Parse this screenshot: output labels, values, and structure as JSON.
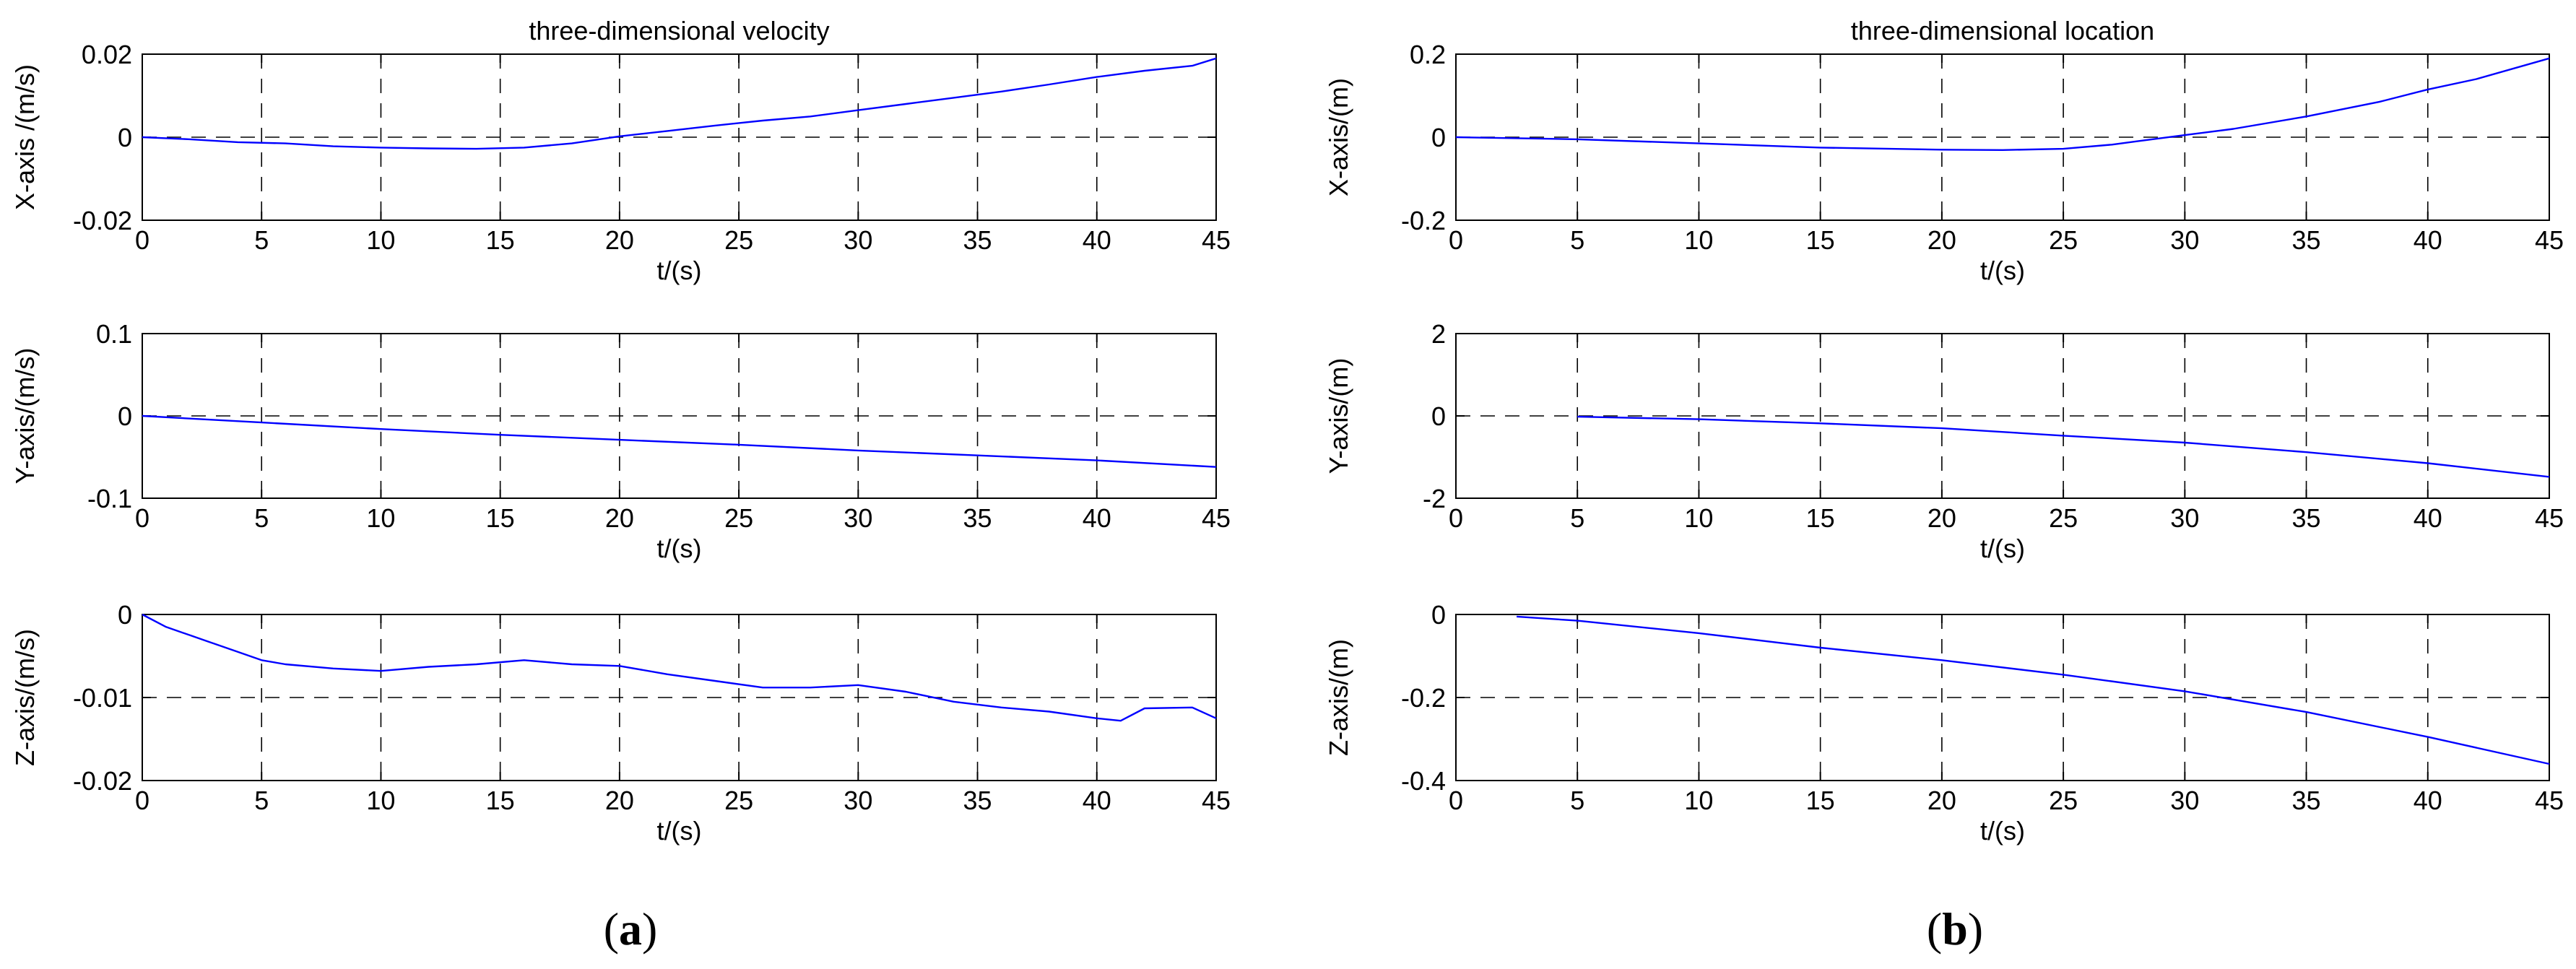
{
  "panels": [
    {
      "letter": "a",
      "open": "(",
      "close": ")"
    },
    {
      "letter": "b",
      "open": "(",
      "close": ")"
    }
  ],
  "chart_data": [
    {
      "type": "line",
      "panel": "a",
      "title": "three-dimensional velocity",
      "xlabel": "t/(s)",
      "ylabel": "X-axis /(m/s)",
      "xlim": [
        0,
        45
      ],
      "ylim": [
        -0.02,
        0.02
      ],
      "xticks": [
        0,
        5,
        10,
        15,
        20,
        25,
        30,
        35,
        40,
        45
      ],
      "yticks": [
        -0.02,
        0,
        0.02
      ],
      "ytick_labels": [
        "-0.02",
        "0",
        "0.02"
      ],
      "grid": true,
      "line_color": "#0000ff",
      "x": [
        0,
        2,
        4,
        6,
        8,
        10,
        12,
        14,
        16,
        18,
        20,
        22,
        24,
        26,
        28,
        30,
        32,
        34,
        36,
        38,
        40,
        42,
        44,
        45
      ],
      "y": [
        0,
        -0.0005,
        -0.0012,
        -0.0015,
        -0.0022,
        -0.0025,
        -0.0027,
        -0.0028,
        -0.0025,
        -0.0015,
        0.0002,
        0.0015,
        0.0028,
        0.004,
        0.005,
        0.0065,
        0.008,
        0.0095,
        0.011,
        0.0127,
        0.0145,
        0.016,
        0.0172,
        0.019
      ]
    },
    {
      "type": "line",
      "panel": "a",
      "title": "",
      "xlabel": "t/(s)",
      "ylabel": "Y-axis/(m/s)",
      "xlim": [
        0,
        45
      ],
      "ylim": [
        -0.1,
        0.1
      ],
      "xticks": [
        0,
        5,
        10,
        15,
        20,
        25,
        30,
        35,
        40,
        45
      ],
      "yticks": [
        -0.1,
        0,
        0.1
      ],
      "ytick_labels": [
        "-0.1",
        "0",
        "0.1"
      ],
      "grid": true,
      "line_color": "#0000ff",
      "x": [
        0,
        5,
        10,
        15,
        20,
        25,
        30,
        35,
        40,
        45
      ],
      "y": [
        0,
        -0.008,
        -0.016,
        -0.023,
        -0.029,
        -0.035,
        -0.042,
        -0.048,
        -0.054,
        -0.062
      ]
    },
    {
      "type": "line",
      "panel": "a",
      "title": "",
      "xlabel": "t/(s)",
      "ylabel": "Z-axis/(m/s)",
      "xlim": [
        0,
        45
      ],
      "ylim": [
        -0.02,
        0
      ],
      "xticks": [
        0,
        5,
        10,
        15,
        20,
        25,
        30,
        35,
        40,
        45
      ],
      "yticks": [
        -0.02,
        -0.01,
        0
      ],
      "ytick_labels": [
        "-0.02",
        "-0.01",
        "0"
      ],
      "grid": true,
      "line_color": "#0000ff",
      "x": [
        0,
        1,
        2,
        3,
        4,
        5,
        6,
        8,
        10,
        12,
        14,
        16,
        18,
        20,
        22,
        24,
        26,
        28,
        30,
        32,
        34,
        36,
        38,
        40,
        41,
        42,
        44,
        45
      ],
      "y": [
        0,
        -0.0015,
        -0.0025,
        -0.0035,
        -0.0045,
        -0.0055,
        -0.006,
        -0.0065,
        -0.0068,
        -0.0063,
        -0.006,
        -0.0055,
        -0.006,
        -0.0062,
        -0.0072,
        -0.008,
        -0.0088,
        -0.0088,
        -0.0085,
        -0.0093,
        -0.0105,
        -0.0112,
        -0.0117,
        -0.0125,
        -0.0128,
        -0.0113,
        -0.0112,
        -0.0125
      ]
    },
    {
      "type": "line",
      "panel": "b",
      "title": "three-dimensional location",
      "xlabel": "t/(s)",
      "ylabel": "X-axis/(m)",
      "xlim": [
        0,
        45
      ],
      "ylim": [
        -0.2,
        0.2
      ],
      "xticks": [
        0,
        5,
        10,
        15,
        20,
        25,
        30,
        35,
        40,
        45
      ],
      "yticks": [
        -0.2,
        0,
        0.2
      ],
      "ytick_labels": [
        "-0.2",
        "0",
        "0.2"
      ],
      "grid": true,
      "line_color": "#0000ff",
      "x": [
        0,
        5,
        10,
        15,
        20,
        22.5,
        25,
        27,
        28,
        30,
        32,
        35,
        38,
        40,
        42,
        45
      ],
      "y": [
        0,
        -0.005,
        -0.015,
        -0.025,
        -0.03,
        -0.031,
        -0.028,
        -0.018,
        -0.01,
        0.005,
        0.02,
        0.05,
        0.085,
        0.115,
        0.14,
        0.19
      ]
    },
    {
      "type": "line",
      "panel": "b",
      "title": "",
      "xlabel": "t/(s)",
      "ylabel": "Y-axis/(m)",
      "xlim": [
        0,
        45
      ],
      "ylim": [
        -2,
        2
      ],
      "xticks": [
        0,
        5,
        10,
        15,
        20,
        25,
        30,
        35,
        40,
        45
      ],
      "yticks": [
        -2,
        0,
        2
      ],
      "ytick_labels": [
        "-2",
        "0",
        "2"
      ],
      "grid": true,
      "line_color": "#0000ff",
      "x": [
        5,
        10,
        15,
        20,
        25,
        30,
        35,
        40,
        45
      ],
      "y": [
        -0.02,
        -0.08,
        -0.18,
        -0.3,
        -0.48,
        -0.65,
        -0.88,
        -1.15,
        -1.48
      ]
    },
    {
      "type": "line",
      "panel": "b",
      "title": "",
      "xlabel": "t/(s)",
      "ylabel": "Z-axis/(m)",
      "xlim": [
        0,
        45
      ],
      "ylim": [
        -0.4,
        0
      ],
      "xticks": [
        0,
        5,
        10,
        15,
        20,
        25,
        30,
        35,
        40,
        45
      ],
      "yticks": [
        -0.4,
        -0.2,
        0
      ],
      "ytick_labels": [
        "-0.4",
        "-0.2",
        "0"
      ],
      "grid": true,
      "line_color": "#0000ff",
      "x": [
        2.5,
        5,
        10,
        15,
        20,
        25,
        30,
        35,
        40,
        45
      ],
      "y": [
        -0.005,
        -0.015,
        -0.045,
        -0.08,
        -0.11,
        -0.145,
        -0.185,
        -0.235,
        -0.295,
        -0.36
      ]
    }
  ]
}
